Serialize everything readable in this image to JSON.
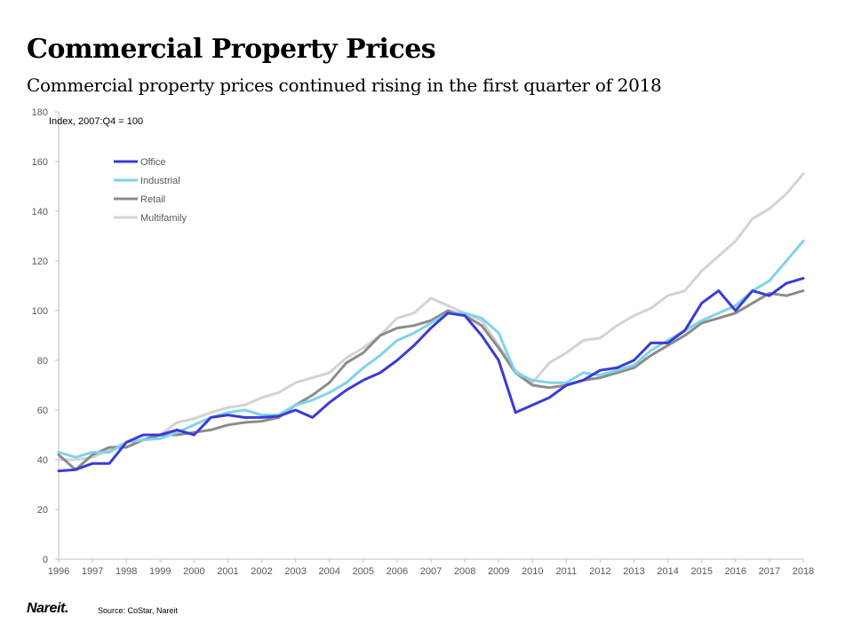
{
  "header": {
    "title": "Commercial Property Prices",
    "subtitle": "Commercial property prices continued rising in the first quarter of 2018"
  },
  "footer": {
    "logo": "Nareit.",
    "source": "Source: CoStar, Nareit"
  },
  "colors": {
    "office": "#3b3bd6",
    "industrial": "#7fd3ea",
    "retail": "#8c8c8c",
    "multifamily": "#d3d3d3",
    "axis": "#bfbfbf"
  },
  "chart_data": {
    "type": "line",
    "title": "Commercial Property Prices",
    "subtitle": "Commercial property prices continued rising in the first quarter of 2018",
    "unit_label": "Index, 2007:Q4 = 100",
    "xlim": [
      1996,
      2018
    ],
    "ylim": [
      0,
      180
    ],
    "x_ticks": [
      1996,
      1997,
      1998,
      1999,
      2000,
      2001,
      2002,
      2003,
      2004,
      2005,
      2006,
      2007,
      2008,
      2009,
      2010,
      2011,
      2012,
      2013,
      2014,
      2015,
      2016,
      2017,
      2018
    ],
    "y_ticks": [
      0,
      20,
      40,
      60,
      80,
      100,
      120,
      140,
      160,
      180
    ],
    "grid": false,
    "legend_position": "top-left",
    "series": [
      {
        "name": "Office",
        "color": "#3b3bd6",
        "points": [
          [
            1996,
            35.5
          ],
          [
            1996.5,
            36
          ],
          [
            1997,
            38.5
          ],
          [
            1997.5,
            38.5
          ],
          [
            1998,
            47
          ],
          [
            1998.5,
            50
          ],
          [
            1999,
            50
          ],
          [
            1999.5,
            52
          ],
          [
            2000,
            50
          ],
          [
            2000.5,
            57
          ],
          [
            2001,
            58
          ],
          [
            2001.5,
            57
          ],
          [
            2002,
            57
          ],
          [
            2002.5,
            57.5
          ],
          [
            2003,
            60
          ],
          [
            2003.5,
            57
          ],
          [
            2004,
            63
          ],
          [
            2004.5,
            68
          ],
          [
            2005,
            72
          ],
          [
            2005.5,
            75
          ],
          [
            2006,
            80
          ],
          [
            2006.5,
            86
          ],
          [
            2007,
            93
          ],
          [
            2007.5,
            99
          ],
          [
            2008,
            98
          ],
          [
            2008.5,
            90
          ],
          [
            2009,
            80
          ],
          [
            2009.5,
            59
          ],
          [
            2010,
            62
          ],
          [
            2010.5,
            65
          ],
          [
            2011,
            70
          ],
          [
            2011.5,
            72
          ],
          [
            2012,
            76
          ],
          [
            2012.5,
            77
          ],
          [
            2013,
            80
          ],
          [
            2013.5,
            87
          ],
          [
            2014,
            87
          ],
          [
            2014.5,
            92
          ],
          [
            2015,
            103
          ],
          [
            2015.5,
            108
          ],
          [
            2016,
            100
          ],
          [
            2016.5,
            108
          ],
          [
            2017,
            106
          ],
          [
            2017.5,
            111
          ],
          [
            2018,
            113
          ]
        ]
      },
      {
        "name": "Industrial",
        "color": "#7fd3ea",
        "points": [
          [
            1996,
            43
          ],
          [
            1996.5,
            41
          ],
          [
            1997,
            43
          ],
          [
            1997.5,
            43
          ],
          [
            1998,
            47
          ],
          [
            1998.5,
            48
          ],
          [
            1999,
            48.5
          ],
          [
            1999.5,
            51
          ],
          [
            2000,
            54
          ],
          [
            2000.5,
            57
          ],
          [
            2001,
            59
          ],
          [
            2001.5,
            60
          ],
          [
            2002,
            58
          ],
          [
            2002.5,
            58
          ],
          [
            2003,
            62
          ],
          [
            2003.5,
            64
          ],
          [
            2004,
            67
          ],
          [
            2004.5,
            71
          ],
          [
            2005,
            77
          ],
          [
            2005.5,
            82
          ],
          [
            2006,
            88
          ],
          [
            2006.5,
            91
          ],
          [
            2007,
            95
          ],
          [
            2007.5,
            99
          ],
          [
            2008,
            99
          ],
          [
            2008.5,
            97
          ],
          [
            2009,
            91
          ],
          [
            2009.5,
            75
          ],
          [
            2010,
            72
          ],
          [
            2010.5,
            71
          ],
          [
            2011,
            71
          ],
          [
            2011.5,
            75
          ],
          [
            2012,
            74
          ],
          [
            2012.5,
            76
          ],
          [
            2013,
            78
          ],
          [
            2013.5,
            84
          ],
          [
            2014,
            88
          ],
          [
            2014.5,
            92
          ],
          [
            2015,
            96
          ],
          [
            2015.5,
            99
          ],
          [
            2016,
            102
          ],
          [
            2016.5,
            108
          ],
          [
            2017,
            112
          ],
          [
            2017.5,
            120
          ],
          [
            2018,
            128
          ]
        ]
      },
      {
        "name": "Retail",
        "color": "#8c8c8c",
        "points": [
          [
            1996,
            42
          ],
          [
            1996.5,
            36
          ],
          [
            1997,
            42
          ],
          [
            1997.5,
            45
          ],
          [
            1998,
            45
          ],
          [
            1998.5,
            48
          ],
          [
            1999,
            50
          ],
          [
            1999.5,
            50
          ],
          [
            2000,
            51
          ],
          [
            2000.5,
            52
          ],
          [
            2001,
            54
          ],
          [
            2001.5,
            55
          ],
          [
            2002,
            55.5
          ],
          [
            2002.5,
            57
          ],
          [
            2003,
            62
          ],
          [
            2003.5,
            66
          ],
          [
            2004,
            71
          ],
          [
            2004.5,
            79
          ],
          [
            2005,
            83
          ],
          [
            2005.5,
            90
          ],
          [
            2006,
            93
          ],
          [
            2006.5,
            94
          ],
          [
            2007,
            96
          ],
          [
            2007.5,
            100
          ],
          [
            2008,
            98
          ],
          [
            2008.5,
            94
          ],
          [
            2009,
            85
          ],
          [
            2009.5,
            75
          ],
          [
            2010,
            70
          ],
          [
            2010.5,
            69
          ],
          [
            2011,
            70
          ],
          [
            2011.5,
            72
          ],
          [
            2012,
            73
          ],
          [
            2012.5,
            75
          ],
          [
            2013,
            77
          ],
          [
            2013.5,
            82
          ],
          [
            2014,
            86
          ],
          [
            2014.5,
            90
          ],
          [
            2015,
            95
          ],
          [
            2015.5,
            97
          ],
          [
            2016,
            99
          ],
          [
            2016.5,
            103
          ],
          [
            2017,
            107
          ],
          [
            2017.5,
            106
          ],
          [
            2018,
            108
          ]
        ]
      },
      {
        "name": "Multifamily",
        "color": "#d3d3d3",
        "points": [
          [
            1996,
            40
          ],
          [
            1996.5,
            40
          ],
          [
            1997,
            41
          ],
          [
            1997.5,
            44
          ],
          [
            1998,
            47
          ],
          [
            1998.5,
            48
          ],
          [
            1999,
            50
          ],
          [
            1999.5,
            55
          ],
          [
            2000,
            56.5
          ],
          [
            2000.5,
            59
          ],
          [
            2001,
            61
          ],
          [
            2001.5,
            62
          ],
          [
            2002,
            65
          ],
          [
            2002.5,
            67
          ],
          [
            2003,
            71
          ],
          [
            2003.5,
            73
          ],
          [
            2004,
            75
          ],
          [
            2004.5,
            81
          ],
          [
            2005,
            85
          ],
          [
            2005.5,
            90
          ],
          [
            2006,
            97
          ],
          [
            2006.5,
            99
          ],
          [
            2007,
            105
          ],
          [
            2007.5,
            102
          ],
          [
            2008,
            99
          ],
          [
            2008.5,
            96
          ],
          [
            2009,
            86
          ],
          [
            2009.5,
            76
          ],
          [
            2010,
            71
          ],
          [
            2010.5,
            79
          ],
          [
            2011,
            83
          ],
          [
            2011.5,
            88
          ],
          [
            2012,
            89
          ],
          [
            2012.5,
            94
          ],
          [
            2013,
            98
          ],
          [
            2013.5,
            101
          ],
          [
            2014,
            106
          ],
          [
            2014.5,
            108
          ],
          [
            2015,
            116
          ],
          [
            2015.5,
            122
          ],
          [
            2016,
            128
          ],
          [
            2016.5,
            137
          ],
          [
            2017,
            141
          ],
          [
            2017.5,
            147
          ],
          [
            2018,
            155
          ]
        ]
      }
    ]
  }
}
